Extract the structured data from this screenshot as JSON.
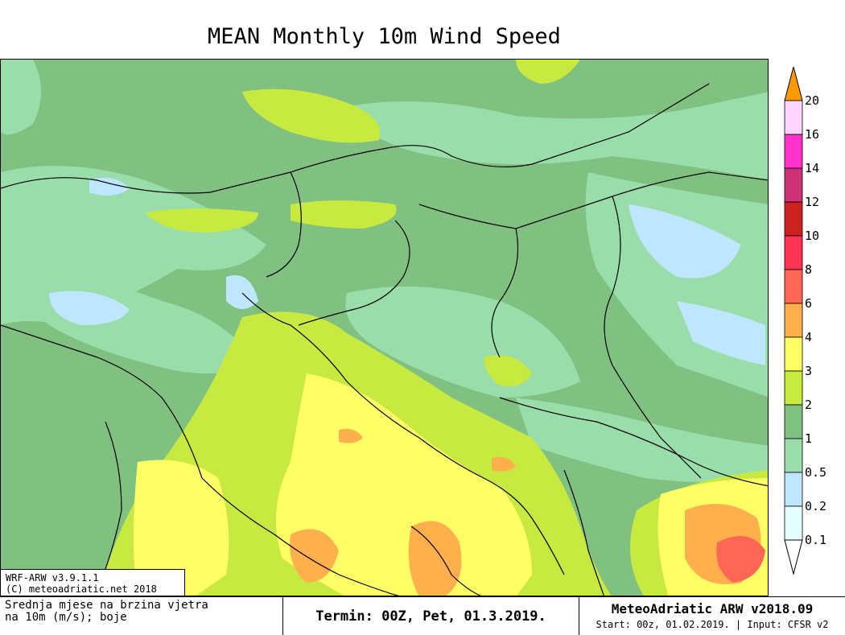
{
  "title": "MEAN Monthly 10m Wind Speed",
  "info_box": {
    "line1": "WRF-ARW v3.9.1.1",
    "line2": "(C) meteoadriatic.net 2018"
  },
  "footer": {
    "description_line1": "Srednja mjese  na brzina vjetra",
    "description_line2": "na 10m (m/s); boje",
    "termin": "Termin: 00Z, Pet, 01.3.2019.",
    "brand": "MeteoAdriatic ARW v2018.09",
    "start_info": "Start: 00z, 01.02.2019. | Input: CFSR v2"
  },
  "colorbar": {
    "labels": [
      "20",
      "16",
      "14",
      "12",
      "10",
      "8",
      "6",
      "4",
      "3",
      "2",
      "1",
      "0.5",
      "0.2",
      "0.1"
    ],
    "colors": [
      "#ffd6ff",
      "#ff33cc",
      "#cc3377",
      "#cc2222",
      "#ff3355",
      "#ff6655",
      "#ffb04d",
      "#ffff66",
      "#c8ea40",
      "#80c080",
      "#99ddaa",
      "#bfe6ff",
      "#e6ffff"
    ],
    "top_color": "#ff9900",
    "bottom_color": "#ffffff"
  }
}
